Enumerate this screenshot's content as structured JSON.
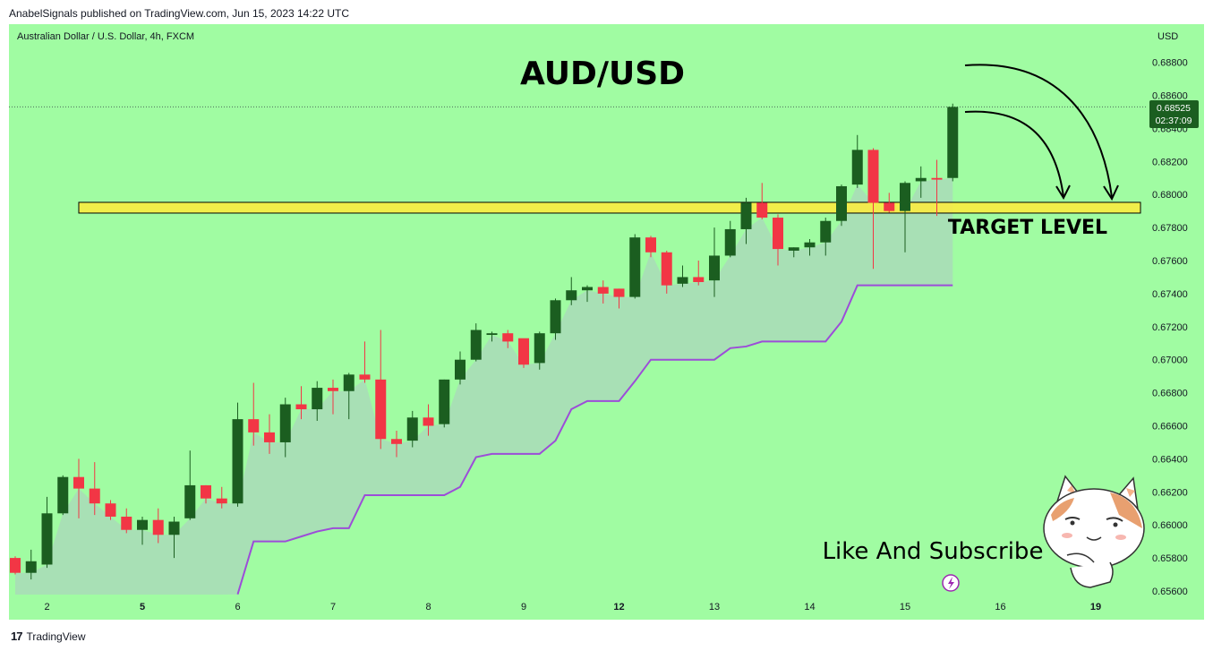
{
  "header": {
    "publish_line": "AnabelSignals published on TradingView.com, Jun 15, 2023 14:22 UTC"
  },
  "instrument": {
    "label": "Australian Dollar / U.S. Dollar, 4h, FXCM",
    "currency": "USD"
  },
  "footer": {
    "brand": "TradingView",
    "logo_glyph": "17"
  },
  "annotations": {
    "title": "AUD/USD",
    "target_label": "TARGET LEVEL",
    "cta": "Like And Subscribe",
    "target_price": 0.6792
  },
  "price_tag": {
    "price": "0.68525",
    "countdown": "02:37:09"
  },
  "colors": {
    "background": "#a0fca2",
    "up": "#1b5e20",
    "down": "#f23645",
    "supertrend": "#9c4dd8",
    "fill": "#a9dbb9",
    "target_zone": "#ffeb3b",
    "price_tag": "#1b5e20"
  },
  "chart_data": {
    "type": "candlestick",
    "title": "AUD/USD",
    "ylim": [
      0.6555,
      0.6907
    ],
    "y_ticks": [
      0.656,
      0.658,
      0.66,
      0.662,
      0.664,
      0.666,
      0.668,
      0.67,
      0.672,
      0.674,
      0.676,
      0.678,
      0.68,
      0.682,
      0.684,
      0.686,
      0.688
    ],
    "y_tick_labels": [
      "0.65600",
      "0.65800",
      "0.66000",
      "0.66200",
      "0.66400",
      "0.66600",
      "0.66800",
      "0.67000",
      "0.67200",
      "0.67400",
      "0.67600",
      "0.67800",
      "0.68000",
      "0.68200",
      "0.68400",
      "0.68600",
      "0.68800"
    ],
    "x_ticks": [
      {
        "label": "2",
        "index": 2,
        "bold": false
      },
      {
        "label": "5",
        "index": 8,
        "bold": true
      },
      {
        "label": "6",
        "index": 14,
        "bold": false
      },
      {
        "label": "7",
        "index": 20,
        "bold": false
      },
      {
        "label": "8",
        "index": 26,
        "bold": false
      },
      {
        "label": "9",
        "index": 32,
        "bold": false
      },
      {
        "label": "12",
        "index": 38,
        "bold": true
      },
      {
        "label": "13",
        "index": 44,
        "bold": false
      },
      {
        "label": "14",
        "index": 50,
        "bold": false
      },
      {
        "label": "15",
        "index": 56,
        "bold": false
      },
      {
        "label": "16",
        "index": 62,
        "bold": false
      },
      {
        "label": "19",
        "index": 68,
        "bold": true
      }
    ],
    "candles": [
      {
        "o": 0.658,
        "h": 0.6581,
        "l": 0.657,
        "c": 0.6571
      },
      {
        "o": 0.6571,
        "h": 0.6585,
        "l": 0.6567,
        "c": 0.6578
      },
      {
        "o": 0.6576,
        "h": 0.6617,
        "l": 0.6574,
        "c": 0.6607
      },
      {
        "o": 0.6607,
        "h": 0.663,
        "l": 0.6606,
        "c": 0.6629
      },
      {
        "o": 0.6629,
        "h": 0.664,
        "l": 0.6604,
        "c": 0.6622
      },
      {
        "o": 0.6622,
        "h": 0.6638,
        "l": 0.6606,
        "c": 0.6613
      },
      {
        "o": 0.6613,
        "h": 0.6615,
        "l": 0.6603,
        "c": 0.6605
      },
      {
        "o": 0.6605,
        "h": 0.661,
        "l": 0.6595,
        "c": 0.6597
      },
      {
        "o": 0.6597,
        "h": 0.6605,
        "l": 0.6588,
        "c": 0.6603
      },
      {
        "o": 0.6603,
        "h": 0.661,
        "l": 0.6589,
        "c": 0.6594
      },
      {
        "o": 0.6594,
        "h": 0.6605,
        "l": 0.658,
        "c": 0.6602
      },
      {
        "o": 0.6604,
        "h": 0.6645,
        "l": 0.6603,
        "c": 0.6624
      },
      {
        "o": 0.6624,
        "h": 0.6624,
        "l": 0.6613,
        "c": 0.6616
      },
      {
        "o": 0.6616,
        "h": 0.6623,
        "l": 0.661,
        "c": 0.6613
      },
      {
        "o": 0.6613,
        "h": 0.6674,
        "l": 0.6611,
        "c": 0.6664
      },
      {
        "o": 0.6664,
        "h": 0.6686,
        "l": 0.6648,
        "c": 0.6656
      },
      {
        "o": 0.6656,
        "h": 0.6667,
        "l": 0.6643,
        "c": 0.665
      },
      {
        "o": 0.665,
        "h": 0.6677,
        "l": 0.6641,
        "c": 0.6673
      },
      {
        "o": 0.6673,
        "h": 0.6684,
        "l": 0.6664,
        "c": 0.667
      },
      {
        "o": 0.667,
        "h": 0.6687,
        "l": 0.6663,
        "c": 0.6683
      },
      {
        "o": 0.6683,
        "h": 0.6688,
        "l": 0.6667,
        "c": 0.6681
      },
      {
        "o": 0.6681,
        "h": 0.6692,
        "l": 0.6664,
        "c": 0.6691
      },
      {
        "o": 0.6691,
        "h": 0.6711,
        "l": 0.6686,
        "c": 0.6688
      },
      {
        "o": 0.6688,
        "h": 0.6718,
        "l": 0.6646,
        "c": 0.6652
      },
      {
        "o": 0.6652,
        "h": 0.6657,
        "l": 0.6641,
        "c": 0.6649
      },
      {
        "o": 0.6651,
        "h": 0.6669,
        "l": 0.6647,
        "c": 0.6665
      },
      {
        "o": 0.6665,
        "h": 0.6673,
        "l": 0.6654,
        "c": 0.666
      },
      {
        "o": 0.6661,
        "h": 0.6688,
        "l": 0.6659,
        "c": 0.6688
      },
      {
        "o": 0.6688,
        "h": 0.6705,
        "l": 0.6685,
        "c": 0.67
      },
      {
        "o": 0.67,
        "h": 0.6722,
        "l": 0.6699,
        "c": 0.6718
      },
      {
        "o": 0.6715,
        "h": 0.6717,
        "l": 0.6711,
        "c": 0.6716
      },
      {
        "o": 0.6716,
        "h": 0.6718,
        "l": 0.6707,
        "c": 0.6711
      },
      {
        "o": 0.6713,
        "h": 0.6712,
        "l": 0.6695,
        "c": 0.6697
      },
      {
        "o": 0.6698,
        "h": 0.6717,
        "l": 0.6694,
        "c": 0.6716
      },
      {
        "o": 0.6716,
        "h": 0.6737,
        "l": 0.6712,
        "c": 0.6736
      },
      {
        "o": 0.6736,
        "h": 0.675,
        "l": 0.6733,
        "c": 0.6742
      },
      {
        "o": 0.6742,
        "h": 0.6745,
        "l": 0.6735,
        "c": 0.6744
      },
      {
        "o": 0.6744,
        "h": 0.6748,
        "l": 0.6734,
        "c": 0.674
      },
      {
        "o": 0.6743,
        "h": 0.6743,
        "l": 0.6731,
        "c": 0.6738
      },
      {
        "o": 0.6738,
        "h": 0.6776,
        "l": 0.6737,
        "c": 0.6774
      },
      {
        "o": 0.6774,
        "h": 0.6775,
        "l": 0.6762,
        "c": 0.6765
      },
      {
        "o": 0.6765,
        "h": 0.6766,
        "l": 0.674,
        "c": 0.6745
      },
      {
        "o": 0.6746,
        "h": 0.6757,
        "l": 0.6744,
        "c": 0.675
      },
      {
        "o": 0.675,
        "h": 0.676,
        "l": 0.6745,
        "c": 0.6747
      },
      {
        "o": 0.6748,
        "h": 0.678,
        "l": 0.6738,
        "c": 0.6763
      },
      {
        "o": 0.6763,
        "h": 0.6784,
        "l": 0.6762,
        "c": 0.6779
      },
      {
        "o": 0.6779,
        "h": 0.6798,
        "l": 0.677,
        "c": 0.6795
      },
      {
        "o": 0.6795,
        "h": 0.6807,
        "l": 0.6785,
        "c": 0.6786
      },
      {
        "o": 0.6786,
        "h": 0.6788,
        "l": 0.6757,
        "c": 0.6767
      },
      {
        "o": 0.6766,
        "h": 0.6768,
        "l": 0.6762,
        "c": 0.6768
      },
      {
        "o": 0.6768,
        "h": 0.6773,
        "l": 0.6763,
        "c": 0.6771
      },
      {
        "o": 0.6771,
        "h": 0.6786,
        "l": 0.6763,
        "c": 0.6784
      },
      {
        "o": 0.6784,
        "h": 0.6806,
        "l": 0.6781,
        "c": 0.6805
      },
      {
        "o": 0.6806,
        "h": 0.6836,
        "l": 0.6804,
        "c": 0.6827
      },
      {
        "o": 0.6827,
        "h": 0.6828,
        "l": 0.6755,
        "c": 0.6795
      },
      {
        "o": 0.6795,
        "h": 0.6801,
        "l": 0.6789,
        "c": 0.679
      },
      {
        "o": 0.679,
        "h": 0.6808,
        "l": 0.6765,
        "c": 0.6807
      },
      {
        "o": 0.6808,
        "h": 0.6817,
        "l": 0.6798,
        "c": 0.681
      },
      {
        "o": 0.681,
        "h": 0.6821,
        "l": 0.6787,
        "c": 0.6809
      },
      {
        "o": 0.681,
        "h": 0.6855,
        "l": 0.6808,
        "c": 0.6853
      }
    ],
    "supertrend": [
      null,
      null,
      null,
      null,
      null,
      null,
      null,
      null,
      null,
      null,
      null,
      null,
      null,
      null,
      0.6558,
      0.659,
      0.659,
      0.659,
      0.6593,
      0.6596,
      0.6598,
      0.6598,
      0.6618,
      0.6618,
      0.6618,
      0.6618,
      0.6618,
      0.6618,
      0.6623,
      0.6641,
      0.6643,
      0.6643,
      0.6643,
      0.6643,
      0.6651,
      0.667,
      0.6675,
      0.6675,
      0.6675,
      0.6687,
      0.67,
      0.67,
      0.67,
      0.67,
      0.67,
      0.6707,
      0.6708,
      0.6711,
      0.6711,
      0.6711,
      0.6711,
      0.6711,
      0.6723,
      0.6745,
      0.6745,
      0.6745,
      0.6745,
      0.6745,
      0.6745,
      0.6745
    ]
  }
}
